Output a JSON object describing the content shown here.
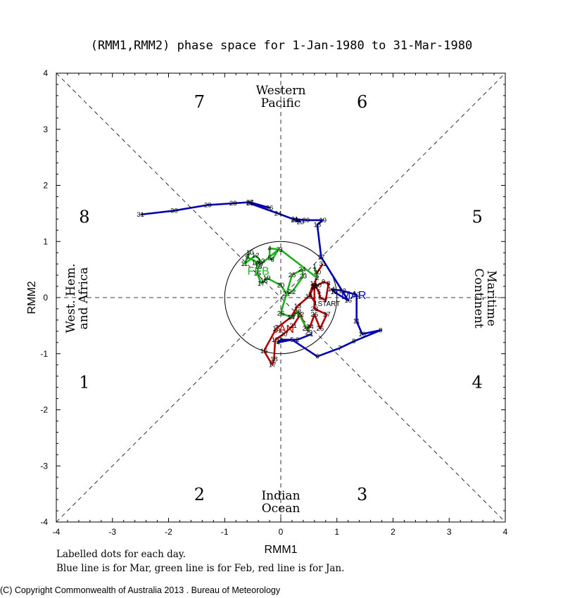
{
  "title": "(RMM1,RMM2) phase space for  1-Jan-1980 to 31-Mar-1980",
  "notes": {
    "line1": "Labelled dots for each day.",
    "line2": "Blue line is for Mar, green line is for Feb, red line is for Jan."
  },
  "copyright": "(C) Copyright Commonwealth of Australia 2013 . Bureau of Meteorology",
  "chart_data": {
    "type": "line",
    "xlabel": "RMM1",
    "ylabel": "RMM2",
    "xlim": [
      -4,
      4
    ],
    "ylim": [
      -4,
      4
    ],
    "xticks": [
      "-4",
      "-3",
      "-2",
      "-1",
      "0",
      "1",
      "2",
      "3",
      "4"
    ],
    "yticks": [
      "-4",
      "-3",
      "-2",
      "-1",
      "0",
      "1",
      "2",
      "3",
      "4"
    ],
    "phases": [
      {
        "label": "1",
        "x": -3.5,
        "y": -1.5
      },
      {
        "label": "2",
        "x": -1.45,
        "y": -3.5
      },
      {
        "label": "3",
        "x": 1.45,
        "y": -3.5
      },
      {
        "label": "4",
        "x": 3.5,
        "y": -1.5
      },
      {
        "label": "5",
        "x": 3.5,
        "y": 1.45
      },
      {
        "label": "6",
        "x": 1.45,
        "y": 3.5
      },
      {
        "label": "7",
        "x": -1.45,
        "y": 3.5
      },
      {
        "label": "8",
        "x": -3.5,
        "y": 1.45
      }
    ],
    "regions": {
      "top": [
        "Western",
        "Pacific"
      ],
      "bottom": [
        "Indian",
        "Ocean"
      ],
      "left": [
        "West. Hem.",
        "and Africa"
      ],
      "right": [
        "Maritime",
        "Continent"
      ]
    },
    "unit_circle_radius": 1,
    "series": [
      {
        "name": "Jan",
        "label": "JAN",
        "label_pos": [
          0.05,
          -0.55
        ],
        "color": "#b00000",
        "start_label": "START",
        "days": [
          1,
          2,
          3,
          4,
          5,
          6,
          7,
          8,
          9,
          10,
          11,
          12,
          13,
          14,
          15,
          16,
          17,
          18,
          19,
          20,
          21,
          22,
          23,
          24,
          25,
          26,
          27,
          28,
          29,
          30,
          31
        ],
        "x": [
          0.62,
          0.52,
          0.58,
          0.62,
          0.68,
          0.7,
          0.8,
          0.85,
          0.76,
          0.66,
          0.58,
          0.5,
          0.3,
          0.18,
          -0.08,
          -0.3,
          -0.15,
          -0.12,
          -0.1,
          0.05,
          0.22,
          0.35,
          0.45,
          0.52,
          0.6,
          0.7,
          0.82,
          0.6,
          0.6,
          0.65,
          0.75
        ],
        "y": [
          -0.1,
          0.05,
          0.18,
          0.2,
          0.1,
          0.0,
          -0.05,
          0.25,
          0.28,
          0.22,
          0.25,
          0.02,
          -0.15,
          -0.35,
          -0.55,
          -0.95,
          -1.2,
          -1.1,
          -0.75,
          -0.65,
          -0.5,
          -0.3,
          -0.55,
          -0.52,
          -0.3,
          -0.55,
          -0.3,
          -0.2,
          0.2,
          0.45,
          0.6
        ]
      },
      {
        "name": "Feb",
        "label": "FEB",
        "label_pos": [
          -0.4,
          0.48
        ],
        "color": "#20b020",
        "days": [
          1,
          2,
          3,
          4,
          5,
          6,
          7,
          8,
          9,
          10,
          11,
          12,
          13,
          14,
          15,
          16,
          17,
          18,
          19,
          20,
          21,
          22,
          23,
          24,
          25,
          26,
          27,
          28,
          29
        ],
        "x": [
          0.6,
          0.65,
          0.0,
          -0.2,
          -0.2,
          -0.15,
          -0.05,
          -0.35,
          -0.6,
          -0.55,
          -0.65,
          -0.45,
          -0.35,
          -0.45,
          -0.4,
          -0.42,
          -0.35,
          -0.3,
          -0.25,
          0.0,
          0.1,
          0.2,
          0.4,
          0.38,
          0.2,
          0.0,
          0.2,
          0.3,
          0.5
        ],
        "y": [
          0.55,
          0.35,
          0.85,
          0.88,
          0.7,
          0.68,
          0.85,
          0.6,
          0.72,
          0.8,
          0.6,
          0.75,
          0.65,
          0.62,
          0.55,
          0.43,
          0.25,
          0.3,
          0.35,
          0.22,
          0.07,
          0.1,
          0.38,
          0.5,
          0.4,
          -0.28,
          -0.35,
          -0.25,
          -0.62
        ]
      },
      {
        "name": "Mar",
        "label": "MAR",
        "label_pos": [
          1.3,
          0.05
        ],
        "color": "#0000b0",
        "days": [
          1,
          2,
          3,
          4,
          5,
          6,
          7,
          8,
          9,
          10,
          11,
          12,
          13,
          14,
          15,
          16,
          17,
          18,
          19,
          20,
          21,
          22,
          23,
          24,
          25,
          26,
          27,
          28,
          29,
          30,
          31
        ],
        "x": [
          0.55,
          0.3,
          0.0,
          -0.05,
          0.2,
          0.65,
          1.05,
          1.3,
          1.78,
          1.45,
          1.35,
          1.35,
          1.1,
          0.9,
          0.95,
          1.2,
          0.72,
          0.65,
          0.75,
          0.45,
          0.25,
          0.25,
          0.35,
          -0.05,
          -0.55,
          -0.2,
          -0.55,
          -0.85,
          -1.3,
          -1.9,
          -2.5
        ],
        "y": [
          -0.65,
          -0.75,
          -0.75,
          -0.8,
          -0.75,
          -1.05,
          -0.9,
          -0.78,
          -0.58,
          -0.65,
          -0.42,
          0.05,
          0.12,
          0.15,
          0.1,
          -0.05,
          0.72,
          1.3,
          1.38,
          1.38,
          1.4,
          1.38,
          1.35,
          1.5,
          1.68,
          1.6,
          1.7,
          1.68,
          1.65,
          1.55,
          1.48
        ]
      }
    ]
  }
}
